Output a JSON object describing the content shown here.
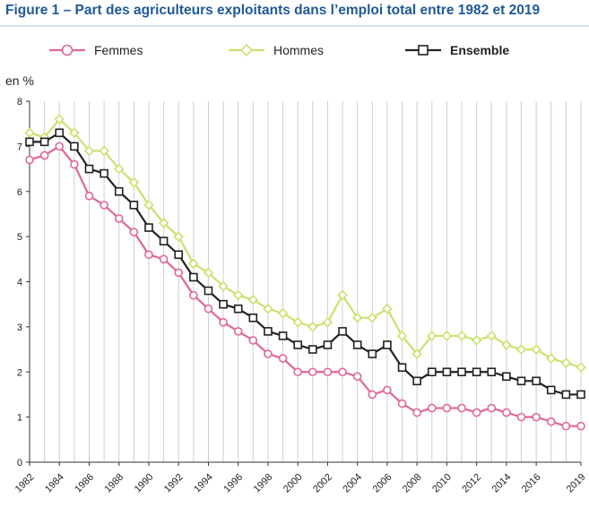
{
  "figure_title": "Figure 1 – Part des agriculteurs exploitants dans l’emploi total entre 1982 et 2019",
  "chart_data": {
    "type": "line",
    "title": "",
    "ylabel": "en %",
    "xlabel": "",
    "ylim": [
      0,
      8
    ],
    "yticks": [
      "0",
      "1",
      "2",
      "3",
      "4",
      "5",
      "6",
      "7",
      "8"
    ],
    "xlim": [
      1982,
      2019
    ],
    "xtick_labels": [
      "1982",
      "1984",
      "1986",
      "1988",
      "1990",
      "1992",
      "1994",
      "1996",
      "1998",
      "2000",
      "2002",
      "2004",
      "2006",
      "2008",
      "2010",
      "2012",
      "2014",
      "2016",
      "2019"
    ],
    "grid": "vertical",
    "legend_position": "top",
    "x": [
      1982,
      1983,
      1984,
      1985,
      1986,
      1987,
      1988,
      1989,
      1990,
      1991,
      1992,
      1993,
      1994,
      1995,
      1996,
      1997,
      1998,
      1999,
      2000,
      2001,
      2002,
      2003,
      2004,
      2005,
      2006,
      2007,
      2008,
      2009,
      2010,
      2011,
      2012,
      2013,
      2014,
      2015,
      2016,
      2017,
      2018,
      2019
    ],
    "series": [
      {
        "name": "Femmes",
        "color": "#e0669a",
        "marker": "circle",
        "bold": false,
        "values": [
          6.7,
          6.8,
          7.0,
          6.6,
          5.9,
          5.7,
          5.4,
          5.1,
          4.6,
          4.5,
          4.2,
          3.7,
          3.4,
          3.1,
          2.9,
          2.7,
          2.4,
          2.3,
          2.0,
          2.0,
          2.0,
          2.0,
          1.9,
          1.5,
          1.6,
          1.3,
          1.1,
          1.2,
          1.2,
          1.2,
          1.1,
          1.2,
          1.1,
          1.0,
          1.0,
          0.9,
          0.8,
          0.8
        ]
      },
      {
        "name": "Hommes",
        "color": "#c8e26e",
        "marker": "diamond",
        "bold": false,
        "values": [
          7.3,
          7.2,
          7.6,
          7.3,
          6.9,
          6.9,
          6.5,
          6.2,
          5.7,
          5.3,
          5.0,
          4.4,
          4.2,
          3.9,
          3.7,
          3.6,
          3.4,
          3.3,
          3.1,
          3.0,
          3.1,
          3.7,
          3.2,
          3.2,
          3.4,
          2.8,
          2.4,
          2.8,
          2.8,
          2.8,
          2.7,
          2.8,
          2.6,
          2.5,
          2.5,
          2.3,
          2.2,
          2.1
        ]
      },
      {
        "name": "Ensemble",
        "color": "#222222",
        "marker": "square",
        "bold": true,
        "values": [
          7.1,
          7.1,
          7.3,
          7.0,
          6.5,
          6.4,
          6.0,
          5.7,
          5.2,
          4.9,
          4.6,
          4.1,
          3.8,
          3.5,
          3.4,
          3.2,
          2.9,
          2.8,
          2.6,
          2.5,
          2.6,
          2.9,
          2.6,
          2.4,
          2.6,
          2.1,
          1.8,
          2.0,
          2.0,
          2.0,
          2.0,
          2.0,
          1.9,
          1.8,
          1.8,
          1.6,
          1.5,
          1.5
        ]
      }
    ]
  }
}
